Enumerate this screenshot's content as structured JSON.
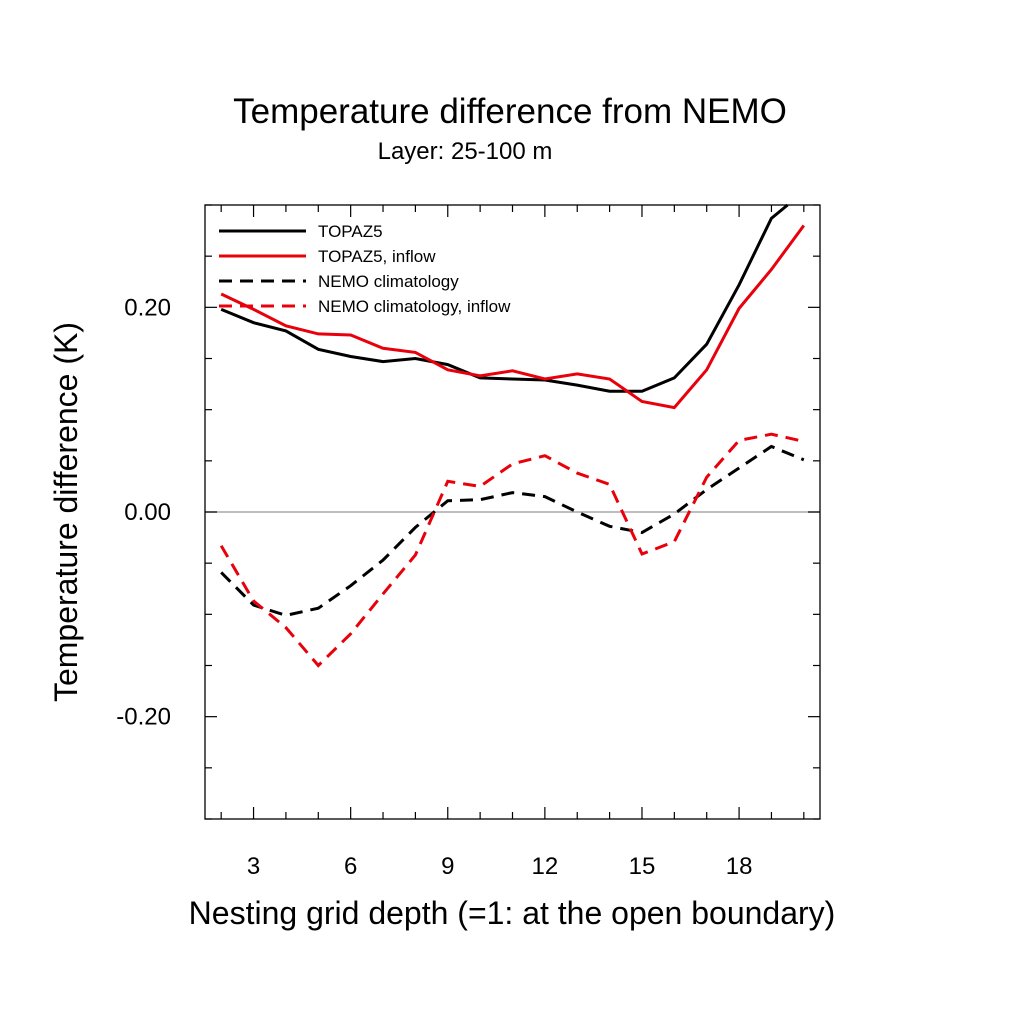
{
  "chart_data": {
    "type": "line",
    "title": "Temperature difference from NEMO",
    "subtitle": "Layer: 25-100 m",
    "xlabel": "Nesting grid depth (=1: at the open boundary)",
    "ylabel": "Temperature difference (K)",
    "xlim": [
      1.5,
      20.5
    ],
    "ylim": [
      -0.3,
      0.3
    ],
    "x_ticks": [
      3,
      6,
      9,
      12,
      15,
      18
    ],
    "x_tick_labels": [
      "3",
      "6",
      "9",
      "12",
      "15",
      "18"
    ],
    "y_ticks": [
      -0.2,
      0.0,
      0.2
    ],
    "y_tick_labels": [
      "-0.20",
      "0.00",
      "0.20"
    ],
    "zero_line": true,
    "grid": false,
    "legend_position": "top-left",
    "series": [
      {
        "name": "TOPAZ5",
        "color": "#000000",
        "dash": "solid",
        "x": [
          2,
          3,
          4,
          5,
          6,
          7,
          8,
          9,
          10,
          11,
          12,
          13,
          14,
          15,
          16,
          17,
          18,
          19,
          19.5
        ],
        "values": [
          0.198,
          0.185,
          0.177,
          0.159,
          0.152,
          0.147,
          0.15,
          0.144,
          0.131,
          0.13,
          0.129,
          0.124,
          0.118,
          0.118,
          0.131,
          0.164,
          0.222,
          0.287,
          0.3
        ]
      },
      {
        "name": "TOPAZ5, inflow",
        "color": "#e8000b",
        "dash": "solid",
        "x": [
          2,
          3,
          4,
          5,
          6,
          7,
          8,
          9,
          10,
          11,
          12,
          13,
          14,
          15,
          16,
          17,
          18,
          19,
          20
        ],
        "values": [
          0.213,
          0.198,
          0.182,
          0.174,
          0.173,
          0.16,
          0.156,
          0.139,
          0.133,
          0.138,
          0.13,
          0.135,
          0.13,
          0.108,
          0.102,
          0.139,
          0.199,
          0.237,
          0.28
        ]
      },
      {
        "name": "NEMO climatology",
        "color": "#000000",
        "dash": "dashed",
        "x": [
          2,
          3,
          4,
          5,
          6,
          7,
          8,
          9,
          10,
          11,
          12,
          13,
          14,
          15,
          16,
          17,
          18,
          19,
          20
        ],
        "values": [
          -0.059,
          -0.091,
          -0.101,
          -0.094,
          -0.072,
          -0.047,
          -0.015,
          0.011,
          0.012,
          0.019,
          0.015,
          0.0,
          -0.014,
          -0.02,
          -0.002,
          0.022,
          0.043,
          0.064,
          0.051
        ]
      },
      {
        "name": "NEMO climatology, inflow",
        "color": "#e8000b",
        "dash": "dashed",
        "x": [
          2,
          3,
          4,
          5,
          6,
          7,
          8,
          9,
          10,
          11,
          12,
          13,
          14,
          15,
          16,
          17,
          18,
          19,
          20
        ],
        "values": [
          -0.033,
          -0.087,
          -0.113,
          -0.15,
          -0.119,
          -0.08,
          -0.042,
          0.03,
          0.025,
          0.047,
          0.055,
          0.038,
          0.027,
          -0.041,
          -0.029,
          0.034,
          0.07,
          0.076,
          0.069
        ]
      }
    ]
  }
}
